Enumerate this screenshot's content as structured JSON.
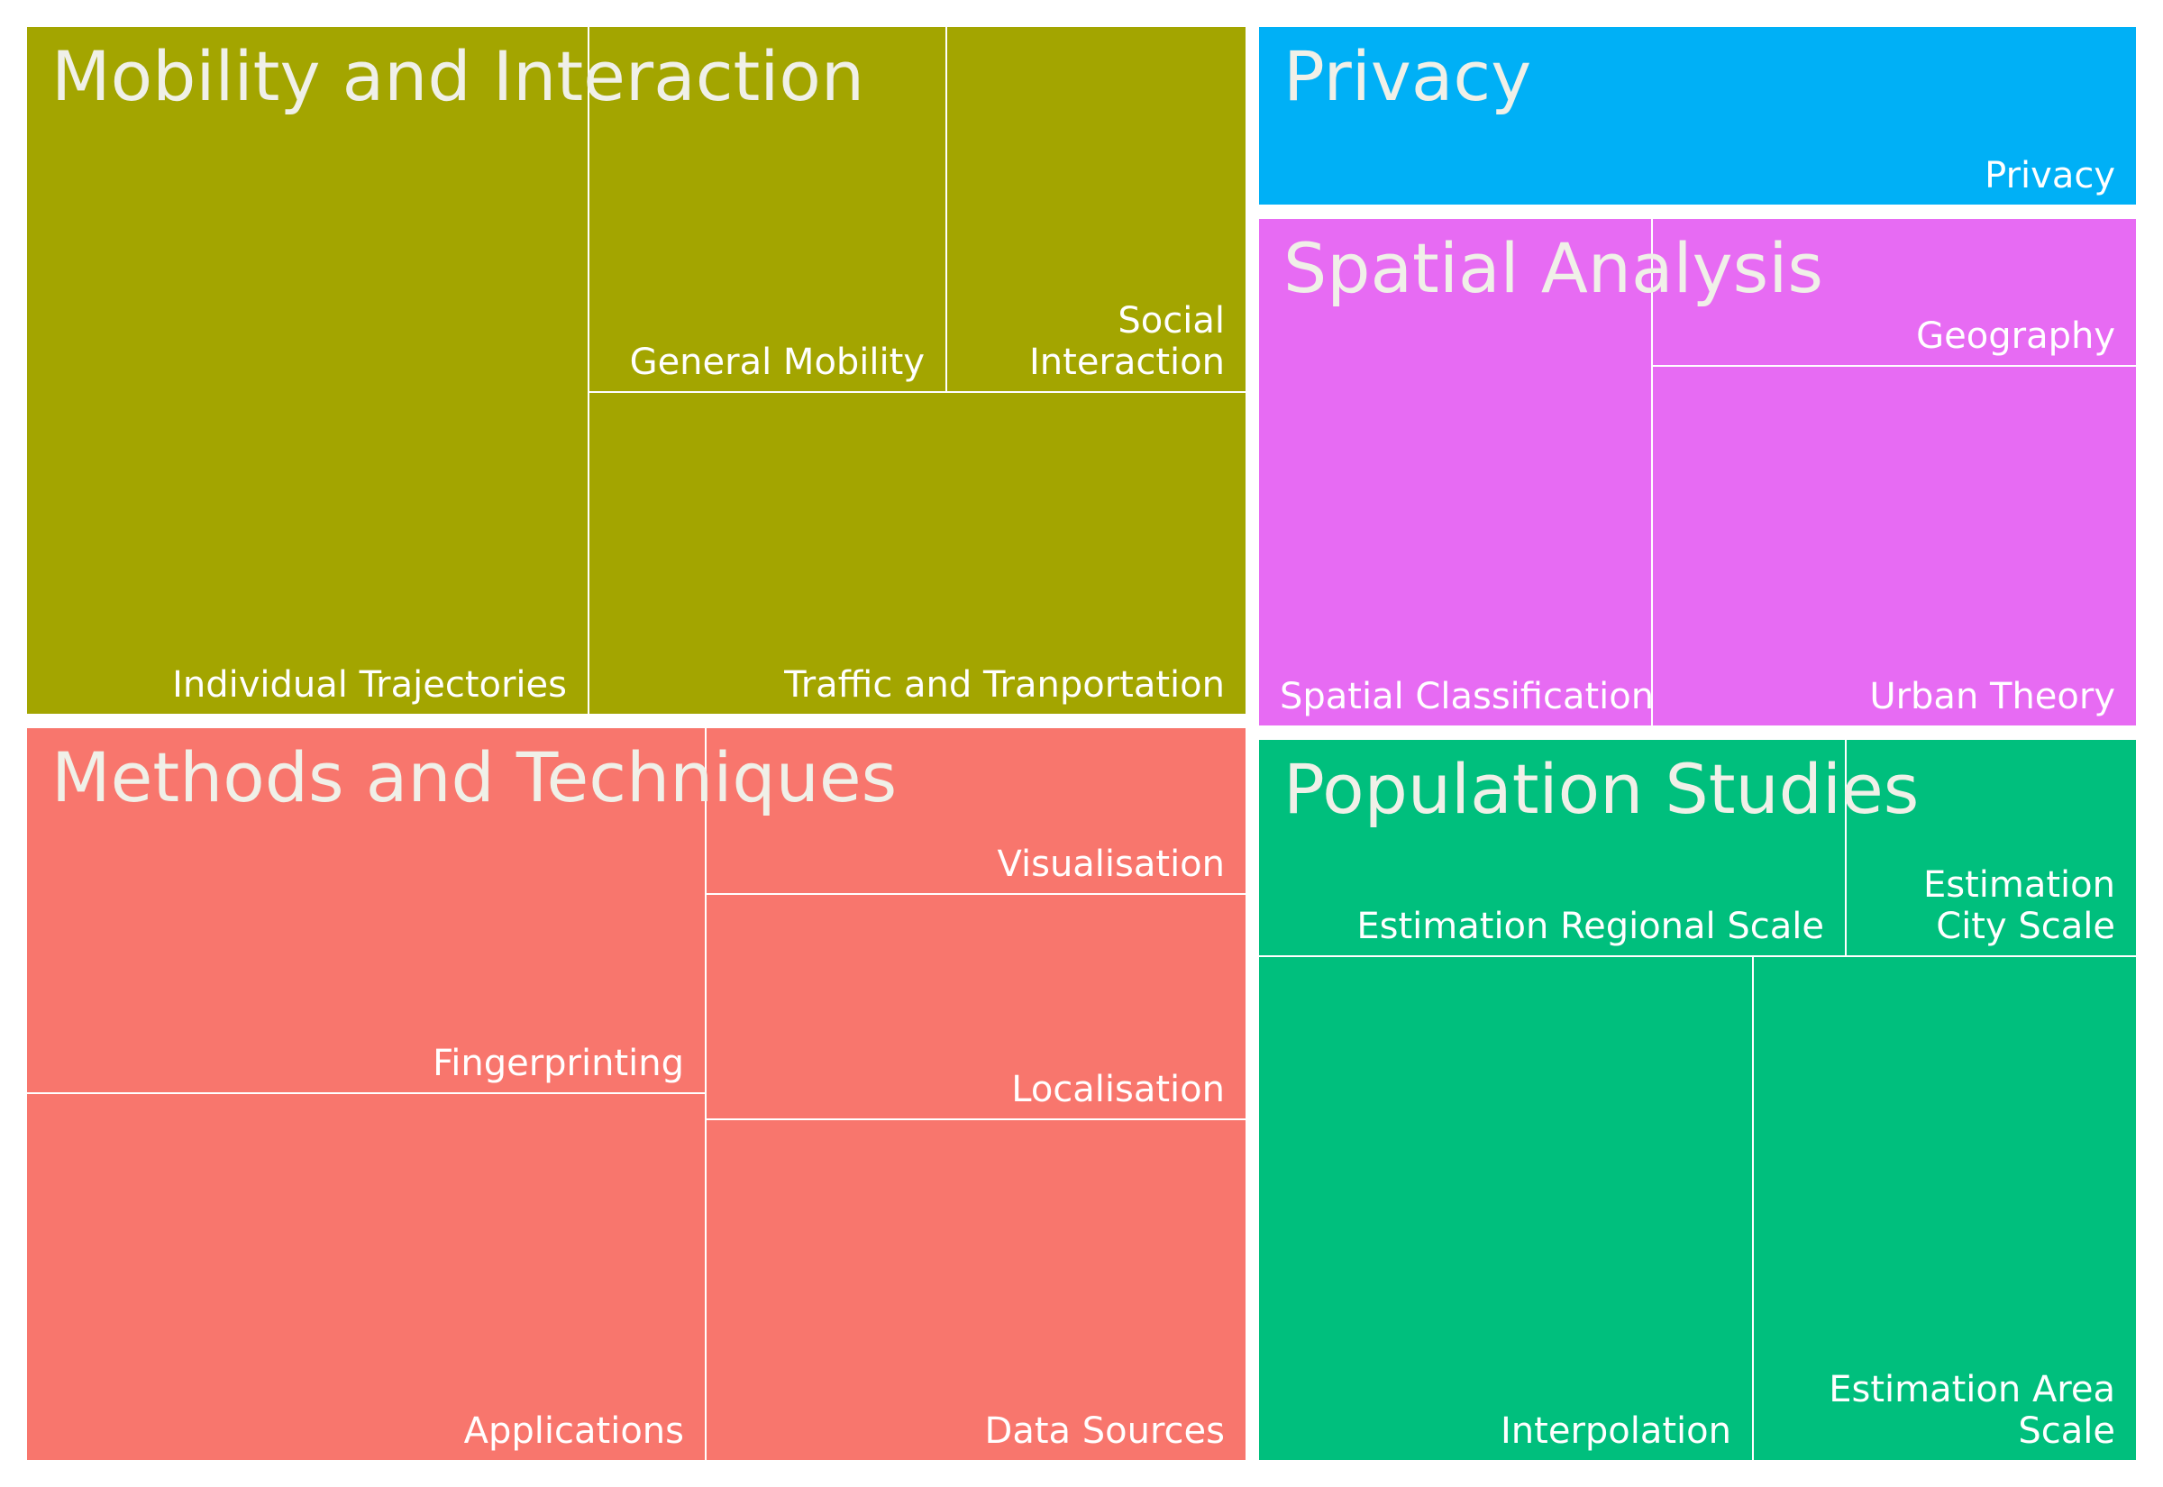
{
  "chart_data": {
    "type": "treemap",
    "groups": [
      {
        "name": "Mobility and Interaction",
        "color": "#A3A500",
        "children": [
          {
            "name": "Individual Trajectories"
          },
          {
            "name": "General Mobility"
          },
          {
            "name": "Social Interaction"
          },
          {
            "name": "Traffic and Tranportation"
          }
        ]
      },
      {
        "name": "Privacy",
        "color": "#00B0F6",
        "children": [
          {
            "name": "Privacy"
          }
        ]
      },
      {
        "name": "Spatial Analysis",
        "color": "#E76BF3",
        "children": [
          {
            "name": "Spatial Classification"
          },
          {
            "name": "Geography"
          },
          {
            "name": "Urban Theory"
          }
        ]
      },
      {
        "name": "Methods and Techniques",
        "color": "#F8766D",
        "children": [
          {
            "name": "Fingerprinting"
          },
          {
            "name": "Visualisation"
          },
          {
            "name": "Localisation"
          },
          {
            "name": "Applications"
          },
          {
            "name": "Data Sources"
          }
        ]
      },
      {
        "name": "Population Studies",
        "color": "#00BF7D",
        "children": [
          {
            "name": "Estimation Regional Scale"
          },
          {
            "name": "Estimation City Scale"
          },
          {
            "name": "Interpolation"
          },
          {
            "name": "Estimation Area Scale"
          }
        ]
      }
    ]
  }
}
